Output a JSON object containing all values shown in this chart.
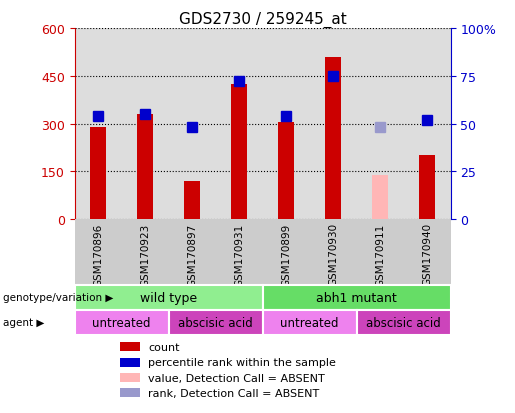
{
  "title": "GDS2730 / 259245_at",
  "samples": [
    "GSM170896",
    "GSM170923",
    "GSM170897",
    "GSM170931",
    "GSM170899",
    "GSM170930",
    "GSM170911",
    "GSM170940"
  ],
  "count_values": [
    290,
    330,
    120,
    425,
    305,
    510,
    null,
    200
  ],
  "count_absent_values": [
    null,
    null,
    null,
    null,
    null,
    null,
    138,
    null
  ],
  "rank_values": [
    54,
    55,
    48,
    72,
    54,
    75,
    null,
    52
  ],
  "rank_absent_values": [
    null,
    null,
    null,
    null,
    null,
    null,
    48,
    null
  ],
  "count_color": "#CC0000",
  "count_absent_color": "#FFB6B6",
  "rank_color": "#0000CC",
  "rank_absent_color": "#9999CC",
  "ylim_left": [
    0,
    600
  ],
  "ylim_right": [
    0,
    100
  ],
  "yticks_left": [
    0,
    150,
    300,
    450,
    600
  ],
  "ytick_labels_right": [
    "0",
    "25",
    "50",
    "75",
    "100%"
  ],
  "genotype_groups": [
    {
      "label": "wild type",
      "start": 0,
      "end": 4,
      "color": "#90EE90"
    },
    {
      "label": "abh1 mutant",
      "start": 4,
      "end": 8,
      "color": "#66DD66"
    }
  ],
  "agent_groups": [
    {
      "label": "untreated",
      "start": 0,
      "end": 2,
      "color": "#EE82EE"
    },
    {
      "label": "abscisic acid",
      "start": 2,
      "end": 4,
      "color": "#CC44BB"
    },
    {
      "label": "untreated",
      "start": 4,
      "end": 6,
      "color": "#EE82EE"
    },
    {
      "label": "abscisic acid",
      "start": 6,
      "end": 8,
      "color": "#CC44BB"
    }
  ],
  "legend_items": [
    {
      "label": "count",
      "color": "#CC0000"
    },
    {
      "label": "percentile rank within the sample",
      "color": "#0000CC"
    },
    {
      "label": "value, Detection Call = ABSENT",
      "color": "#FFB6B6"
    },
    {
      "label": "rank, Detection Call = ABSENT",
      "color": "#9999CC"
    }
  ],
  "bar_width": 0.35,
  "marker_size": 7,
  "axis_bg_color": "#DDDDDD",
  "sample_bg_color": "#CCCCCC",
  "left_axis_color": "#CC0000",
  "right_axis_color": "#0000CC"
}
